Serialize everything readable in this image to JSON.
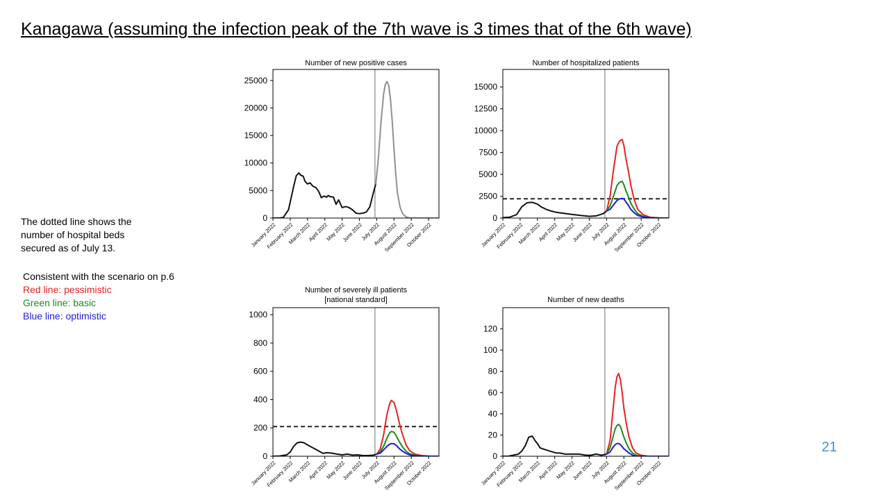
{
  "slide": {
    "title": "Kanagawa (assuming the infection peak of the 7th wave is 3 times that of the 6th wave)",
    "page_number": "21"
  },
  "note": {
    "lines": [
      "The dotted line shows the",
      "number of hospital beds",
      "secured as of July 13."
    ]
  },
  "legend": {
    "intro": "Consistent with the scenario on p.6",
    "items": [
      {
        "label": "Red line: pessimistic",
        "color": "#e8211d"
      },
      {
        "label": "Green line: basic",
        "color": "#1a8a1a"
      },
      {
        "label": "Blue line: optimistic",
        "color": "#1a1ae0"
      }
    ]
  },
  "colors": {
    "actual": "#111111",
    "projection": "#8f8f8f",
    "bed_line": "#222222",
    "divider": "#888888"
  },
  "chart_data": [
    {
      "type": "line",
      "title": [
        "Number of new positive cases"
      ],
      "x_ticks": [
        "January 2022",
        "February 2022",
        "March 2022",
        "April 2022",
        "May 2022",
        "June 2022",
        "July 2022",
        "August 2022",
        "September 2022",
        "October 2022"
      ],
      "xlim": [
        0,
        9.6
      ],
      "ylim": [
        0,
        27000
      ],
      "y_ticks": [
        0,
        5000,
        10000,
        15000,
        20000,
        25000
      ],
      "divider_x": 5.9,
      "series": [
        {
          "style": "actual",
          "x": [
            0,
            0.3,
            0.6,
            0.9,
            1.2,
            1.35,
            1.5,
            1.6,
            1.75,
            1.85,
            2.0,
            2.15,
            2.3,
            2.5,
            2.65,
            2.8,
            2.95,
            3.1,
            3.2,
            3.3,
            3.5,
            3.65,
            3.8,
            4.0,
            4.2,
            4.4,
            4.6,
            4.8,
            5.0,
            5.2,
            5.4,
            5.6,
            5.8,
            5.95
          ],
          "y": [
            0,
            0,
            100,
            1500,
            5800,
            7700,
            8200,
            7800,
            7600,
            6700,
            6200,
            6400,
            5800,
            5500,
            4800,
            3700,
            4000,
            3800,
            4100,
            3900,
            3800,
            2500,
            3300,
            1900,
            2100,
            1900,
            1500,
            900,
            800,
            900,
            1100,
            2000,
            4500,
            6200
          ]
        },
        {
          "style": "projection",
          "x": [
            5.95,
            6.1,
            6.25,
            6.4,
            6.5,
            6.6,
            6.7,
            6.8,
            6.9,
            7.0,
            7.1,
            7.2,
            7.35,
            7.5,
            7.7,
            7.9,
            8.2,
            9.6
          ],
          "y": [
            6200,
            11000,
            17500,
            22500,
            24300,
            24800,
            24000,
            21500,
            17500,
            12500,
            8000,
            4500,
            2000,
            800,
            200,
            0,
            0,
            0
          ]
        }
      ]
    },
    {
      "type": "line",
      "title": [
        "Number of hospitalized patients"
      ],
      "x_ticks": [
        "January 2022",
        "February 2022",
        "March 2022",
        "April 2022",
        "May 2022",
        "June 2022",
        "July 2022",
        "August 2022",
        "September 2022",
        "October 2022"
      ],
      "xlim": [
        0,
        9.6
      ],
      "ylim": [
        0,
        17000
      ],
      "y_ticks": [
        0,
        2500,
        5000,
        7500,
        10000,
        12500,
        15000
      ],
      "divider_x": 5.9,
      "bed_line": 2200,
      "series": [
        {
          "style": "actual",
          "x": [
            0,
            0.4,
            0.8,
            1.1,
            1.4,
            1.7,
            2.0,
            2.2,
            2.5,
            2.8,
            3.1,
            3.5,
            4.0,
            4.5,
            5.0,
            5.4,
            5.8,
            6.0
          ],
          "y": [
            50,
            100,
            400,
            1300,
            1750,
            1800,
            1600,
            1300,
            1000,
            800,
            650,
            550,
            420,
            300,
            200,
            250,
            500,
            800
          ]
        },
        {
          "name": "pessimistic",
          "style": "red",
          "x": [
            6.0,
            6.2,
            6.4,
            6.6,
            6.75,
            6.9,
            7.0,
            7.1,
            7.25,
            7.4,
            7.6,
            7.8,
            8.1,
            8.5,
            9.0,
            9.6
          ],
          "y": [
            800,
            2500,
            5500,
            8200,
            8800,
            9000,
            8300,
            7000,
            5500,
            3800,
            2100,
            1000,
            400,
            100,
            20,
            0
          ]
        },
        {
          "name": "basic",
          "style": "green",
          "x": [
            6.0,
            6.2,
            6.4,
            6.6,
            6.75,
            6.9,
            7.0,
            7.1,
            7.25,
            7.4,
            7.6,
            7.8,
            8.1,
            8.5,
            9.0,
            9.6
          ],
          "y": [
            800,
            1400,
            2500,
            3700,
            4100,
            4200,
            3800,
            3200,
            2500,
            1700,
            1000,
            500,
            200,
            50,
            10,
            0
          ]
        },
        {
          "name": "optimistic",
          "style": "blue",
          "x": [
            6.0,
            6.2,
            6.4,
            6.6,
            6.75,
            6.9,
            7.0,
            7.1,
            7.25,
            7.4,
            7.6,
            7.8,
            8.1,
            8.5,
            9.0,
            9.6
          ],
          "y": [
            800,
            1000,
            1500,
            2000,
            2200,
            2250,
            2200,
            1900,
            1500,
            1000,
            600,
            300,
            120,
            30,
            5,
            0
          ]
        }
      ]
    },
    {
      "type": "line",
      "title": [
        "Number of severely ill patients",
        "[national standard]"
      ],
      "x_ticks": [
        "January 2022",
        "February 2022",
        "March 2022",
        "April 2022",
        "May 2022",
        "June 2022",
        "July 2022",
        "August 2022",
        "September 2022",
        "October 2022"
      ],
      "xlim": [
        0,
        9.6
      ],
      "ylim": [
        0,
        1050
      ],
      "y_ticks": [
        0,
        200,
        400,
        600,
        800,
        1000
      ],
      "divider_x": 5.9,
      "bed_line": 210,
      "series": [
        {
          "style": "actual",
          "x": [
            0,
            0.4,
            0.8,
            1.0,
            1.2,
            1.4,
            1.6,
            1.8,
            2.0,
            2.3,
            2.6,
            2.9,
            3.1,
            3.4,
            3.7,
            4.0,
            4.3,
            4.6,
            4.9,
            5.2,
            5.5,
            5.8,
            6.0
          ],
          "y": [
            0,
            2,
            10,
            30,
            70,
            95,
            100,
            95,
            80,
            60,
            40,
            20,
            25,
            22,
            15,
            10,
            15,
            8,
            10,
            5,
            5,
            8,
            15
          ]
        },
        {
          "name": "pessimistic",
          "style": "red",
          "x": [
            6.0,
            6.2,
            6.4,
            6.6,
            6.75,
            6.85,
            7.0,
            7.15,
            7.3,
            7.5,
            7.7,
            7.9,
            8.2,
            8.6,
            9.0,
            9.6
          ],
          "y": [
            15,
            50,
            150,
            300,
            370,
            395,
            380,
            320,
            240,
            150,
            80,
            40,
            15,
            5,
            1,
            0
          ]
        },
        {
          "name": "basic",
          "style": "green",
          "x": [
            6.0,
            6.2,
            6.4,
            6.6,
            6.75,
            6.85,
            7.0,
            7.15,
            7.3,
            7.5,
            7.7,
            7.9,
            8.2,
            8.6,
            9.0,
            9.6
          ],
          "y": [
            15,
            30,
            70,
            130,
            165,
            175,
            170,
            140,
            105,
            65,
            35,
            18,
            7,
            2,
            0,
            0
          ]
        },
        {
          "name": "optimistic",
          "style": "blue",
          "x": [
            6.0,
            6.2,
            6.4,
            6.6,
            6.75,
            6.85,
            7.0,
            7.15,
            7.3,
            7.5,
            7.7,
            7.9,
            8.2,
            8.6,
            9.0,
            9.6
          ],
          "y": [
            15,
            22,
            45,
            70,
            85,
            90,
            88,
            75,
            55,
            35,
            20,
            10,
            4,
            1,
            0,
            0
          ]
        }
      ]
    },
    {
      "type": "line",
      "title": [
        "Number of new deaths"
      ],
      "x_ticks": [
        "January 2022",
        "February 2022",
        "March 2022",
        "April 2022",
        "May 2022",
        "June 2022",
        "July 2022",
        "August 2022",
        "September 2022",
        "October 2022"
      ],
      "xlim": [
        0,
        9.6
      ],
      "ylim": [
        0,
        140
      ],
      "y_ticks": [
        0,
        20,
        40,
        60,
        80,
        100,
        120
      ],
      "divider_x": 5.9,
      "series": [
        {
          "style": "actual",
          "x": [
            0,
            0.3,
            0.6,
            0.9,
            1.1,
            1.3,
            1.5,
            1.7,
            1.85,
            2.0,
            2.15,
            2.3,
            2.5,
            2.7,
            2.9,
            3.1,
            3.3,
            3.6,
            4.0,
            4.4,
            4.8,
            5.1,
            5.4,
            5.7,
            6.0
          ],
          "y": [
            0,
            0,
            1,
            2,
            5,
            10,
            18,
            19,
            15,
            12,
            8,
            7,
            6,
            5,
            4,
            3,
            3,
            2,
            2,
            2,
            1,
            1,
            2,
            1,
            2
          ]
        },
        {
          "name": "pessimistic",
          "style": "red",
          "x": [
            6.0,
            6.2,
            6.35,
            6.5,
            6.6,
            6.7,
            6.8,
            6.9,
            7.0,
            7.15,
            7.3,
            7.5,
            7.7,
            8.0,
            8.4,
            8.8,
            9.6
          ],
          "y": [
            2,
            15,
            40,
            65,
            75,
            78,
            72,
            60,
            45,
            30,
            18,
            8,
            3,
            1,
            0,
            0,
            0
          ]
        },
        {
          "name": "basic",
          "style": "green",
          "x": [
            6.0,
            6.2,
            6.35,
            6.5,
            6.6,
            6.7,
            6.8,
            6.9,
            7.0,
            7.15,
            7.3,
            7.5,
            7.7,
            8.0,
            8.4,
            8.8,
            9.6
          ],
          "y": [
            2,
            8,
            17,
            26,
            29,
            30,
            28,
            23,
            18,
            12,
            7,
            3,
            1,
            0,
            0,
            0,
            0
          ]
        },
        {
          "name": "optimistic",
          "style": "blue",
          "x": [
            6.0,
            6.2,
            6.35,
            6.5,
            6.6,
            6.7,
            6.8,
            6.9,
            7.0,
            7.15,
            7.3,
            7.5,
            7.7,
            8.0,
            8.4,
            8.8,
            9.6
          ],
          "y": [
            2,
            4,
            8,
            11,
            12,
            12,
            11,
            9,
            7,
            5,
            3,
            1,
            0,
            0,
            0,
            0,
            0
          ]
        }
      ]
    }
  ]
}
